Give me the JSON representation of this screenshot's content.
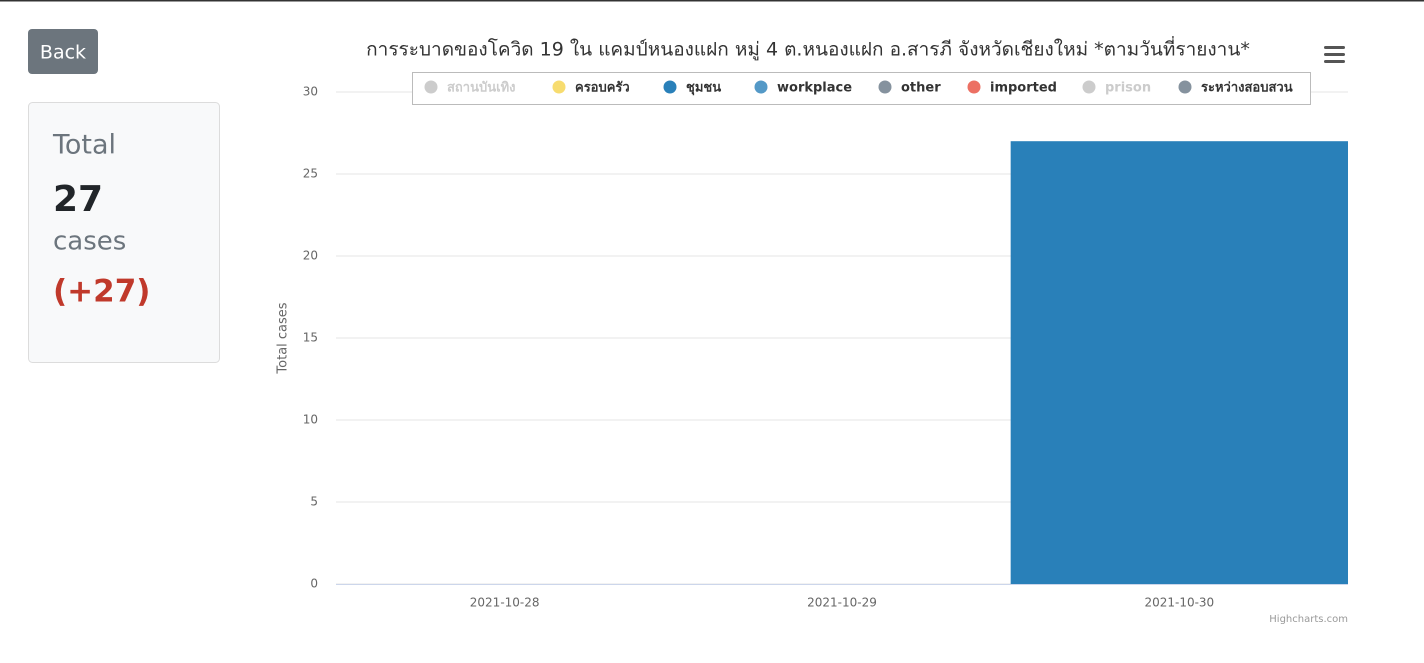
{
  "page": {
    "back_button": "Back",
    "summary": {
      "title": "Total",
      "count": "27",
      "unit": "cases",
      "change": "(+27)"
    }
  },
  "chart_data": {
    "type": "stacked-bar",
    "title": "การระบาดของโควิด 19 ใน แคมป์หนองแฝก หมู่ 4 ต.หนองแฝก อ.สารภี จังหวัดเชียงใหม่ *ตามวันที่รายงาน*",
    "y_label": "Total cases",
    "credits": "Highcharts.com",
    "categories": [
      "2021-10-28",
      "2021-10-29",
      "2021-10-30"
    ],
    "ylim": [
      0,
      30
    ],
    "yticks": [
      0,
      5,
      10,
      15,
      20,
      25,
      30
    ],
    "grid": true,
    "series": [
      {
        "name": "สถานบันเทิง",
        "color": "#cccccc",
        "visible": false,
        "values": [
          0,
          0,
          0
        ]
      },
      {
        "name": "ครอบครัว",
        "color": "#f7dc6f",
        "visible": true,
        "values": [
          0,
          0,
          0
        ]
      },
      {
        "name": "ชุมชน",
        "color": "#2980b9",
        "visible": true,
        "values": [
          0,
          0,
          27
        ]
      },
      {
        "name": "workplace",
        "color": "#5499c7",
        "visible": true,
        "values": [
          0,
          0,
          0
        ]
      },
      {
        "name": "other",
        "color": "#85929e",
        "visible": true,
        "values": [
          0,
          0,
          0
        ]
      },
      {
        "name": "imported",
        "color": "#ec7063",
        "visible": true,
        "values": [
          0,
          0,
          0
        ]
      },
      {
        "name": "prison",
        "color": "#cccccc",
        "visible": false,
        "values": [
          0,
          0,
          0
        ]
      },
      {
        "name": "ระหว่างสอบสวน",
        "color": "#85929e",
        "visible": true,
        "values": [
          0,
          0,
          0
        ]
      }
    ]
  }
}
